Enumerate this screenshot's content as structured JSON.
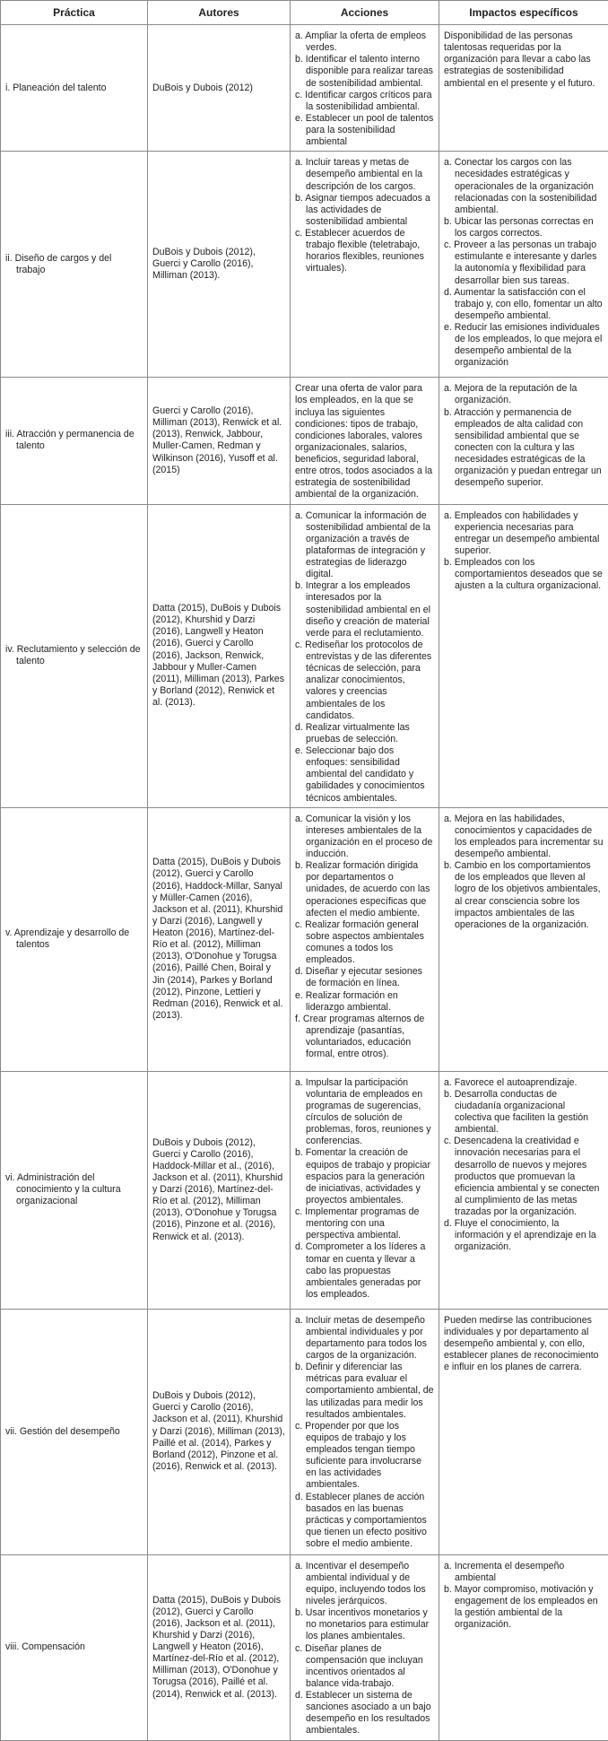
{
  "table": {
    "header": [
      "Práctica",
      "Autores",
      "Acciones",
      "Impactos específicos"
    ],
    "rows": [
      {
        "practice": "i. Planeación del talento",
        "authors": "DuBois y Dubois (2012)",
        "actions": [
          "a. Ampliar la oferta de empleos verdes.",
          "b. Identificar el talento interno disponible para realizar tareas de sostenibilidad ambiental.",
          "c. Identificar cargos críticos para la sostenibilidad ambiental.",
          "e. Establecer un pool de talentos para la sostenibilidad ambiental"
        ],
        "impacts": [
          "Disponibilidad de las personas talentosas requeridas por la organización para llevar a cabo las estrategias de sostenibilidad ambiental en el presente y el futuro."
        ]
      },
      {
        "practice": "ii. Diseño de cargos y del trabajo",
        "authors": "DuBois y Dubois (2012), Guerci y Carollo (2016), Milliman (2013).",
        "actions": [
          "a. Incluir tareas y metas de desempeño ambiental en la descripción de los cargos.",
          "b. Asignar tiempos adecuados a las actividades de sostenibilidad ambiental",
          "c. Establecer acuerdos de trabajo flexible (teletrabajo, horarios flexibles, reuniones virtuales)."
        ],
        "impacts": [
          "a. Conectar los cargos con las necesidades estratégicas y operacionales de la organización relacionadas con la sostenibilidad ambiental.",
          "b. Ubicar las personas correctas en los cargos correctos.",
          "c. Proveer a las personas un trabajo estimulante e interesante y darles la autonomía y flexibilidad para desarrollar bien sus tareas.",
          "d. Aumentar la satisfacción con el trabajo y, con ello, fomentar un alto desempeño ambiental.",
          "e. Reducir las emisiones individuales de los empleados, lo que mejora el desempeño ambiental de la organización"
        ]
      },
      {
        "practice": "iii. Atracción y permanencia de talento",
        "authors": "Guerci y Carollo (2016), Milliman (2013), Renwick et al. (2013), Renwick, Jabbour, Muller-Camen, Redman y Wilkinson (2016), Yusoff et al. (2015)",
        "actions": [
          "Crear una oferta de valor para los empleados, en la que se incluya las siguientes condiciones: tipos de trabajo, condiciones laborales, valores organizacionales, salarios, beneficios, seguridad laboral, entre otros, todos asociados a la estrategia de sostenibilidad ambiental de la organización."
        ],
        "impacts": [
          "a. Mejora de la reputación de la organización.",
          "b. Atracción y permanencia de empleados de alta calidad con sensibilidad ambiental que se conecten con la cultura y las necesidades estratégicas de la organización y puedan entregar un desempeño superior."
        ]
      },
      {
        "practice": "iv. Reclutamiento y selección de talento",
        "authors": "Datta (2015), DuBois y Dubois (2012), Khurshid y Darzi (2016), Langwell y Heaton (2016), Guerci y Carollo (2016), Jackson, Renwick, Jabbour y Muller-Camen (2011), Milliman (2013), Parkes y Borland (2012), Renwick et al. (2013).",
        "actions": [
          "a. Comunicar la información de sostenibilidad ambiental de la organización a través de plataformas de integración y estrategias de liderazgo digital.",
          "b. Integrar a los empleados interesados por la sostenibilidad ambiental en el diseño y creación de material verde para el reclutamiento.",
          "c. Rediseñar los protocolos de entrevistas y de las diferentes técnicas de selección, para analizar conocimientos, valores y creencias ambientales de los candidatos.",
          "d. Realizar virtualmente las pruebas de selección.",
          "e. Seleccionar bajo dos enfoques: sensibilidad ambiental del candidato y gabilidades y conocimientos técnicos ambientales."
        ],
        "impacts": [
          "a. Empleados con habilidades y experiencia necesarias para entregar un desempeño ambiental superior.",
          "b. Empleados con los comportamientos deseados que se ajusten a la cultura organizacional."
        ]
      },
      {
        "practice": "v. Aprendizaje y desarrollo de talentos",
        "authors": "Datta (2015), DuBois y Dubois (2012), Guerci y Carollo (2016), Haddock-Millar, Sanyal y Müller-Camen (2016), Jackson et al. (2011), Khurshid y Darzi (2016), Langwell y Heaton (2016), Martínez-del-Río et al. (2012), Milliman (2013), O'Donohue y Torugsa (2016), Paillé Chen, Boiral y Jin (2014), Parkes y Borland (2012), Pinzone, Lettieri y Redman (2016), Renwick et al. (2013).",
        "actions": [
          "a. Comunicar la visión y los intereses ambientales de la organización en el proceso de inducción.",
          "b. Realizar formación dirigida por departamentos o unidades, de acuerdo con las operaciones específicas que afecten el medio ambiente.",
          "c. Realizar formación general sobre aspectos ambientales comunes a todos los empleados.",
          "d. Diseñar y ejecutar sesiones de formación en línea.",
          "e. Realizar formación en liderazgo ambiental.",
          "f. Crear programas alternos de aprendizaje (pasantías, voluntariados, educación formal, entre otros)."
        ],
        "impacts": [
          "a. Mejora en las habilidades, conocimientos y capacidades de los empleados para incrementar su desempeño ambiental.",
          "b. Cambio en los comportamientos de los empleados que lleven al logro de los objetivos ambientales, al crear consciencia sobre los impactos ambientales de las operaciones de la organización."
        ]
      },
      {
        "practice": "vi. Administración del conocimiento y la cultura organizacional",
        "authors": "DuBois y Dubois (2012), Guerci y Carollo (2016), Haddock-Millar et al., (2016), Jackson et al. (2011), Khurshid y Darzi (2016), Martínez-del-Río et al. (2012), Milliman (2013), O'Donohue y Torugsa (2016), Pinzone et al. (2016), Renwick et al. (2013).",
        "actions": [
          "a. Impulsar la participación voluntaria de empleados en programas de sugerencias, círculos de solución de problemas, foros, reuniones y conferencias.",
          "b. Fomentar la creación de equipos de trabajo y propiciar espacios para la generación de iniciativas, actividades y proyectos ambientales.",
          "c. Implementar programas de mentoring con una perspectiva ambiental.",
          "d. Comprometer a los líderes a tomar en cuenta y llevar a cabo las propuestas ambientales generadas por los empleados."
        ],
        "impacts": [
          "a. Favorece el autoaprendizaje.",
          "b. Desarrolla conductas de ciudadanía organizacional colectiva que faciliten la gestión ambiental.",
          "c. Desencadena la creatividad e innovación necesarias para el desarrollo de nuevos y mejores productos que promuevan la eficiencia ambiental y se conecten al cumplimiento de las metas trazadas por la organización.",
          "d. Fluye el conocimiento, la información y el aprendizaje en la organización."
        ]
      },
      {
        "practice": "vii. Gestión del desempeño",
        "authors": "DuBois y Dubois (2012), Guerci y Carollo (2016), Jackson et al. (2011), Khurshid y Darzi (2016), Milliman (2013), Paillé et al. (2014), Parkes y Borland (2012), Pinzone et al. (2016), Renwick et al. (2013).",
        "actions": [
          "a. Incluir metas de desempeño ambiental individuales y por departamento para todos los cargos de la organización.",
          "b. Definir y diferenciar las métricas para evaluar el comportamiento ambiental, de las utilizadas para medir los resultados ambientales.",
          "c. Propender por que los equipos de trabajo y los empleados tengan tiempo suficiente para involucrarse en las actividades ambientales.",
          "d. Establecer planes de acción basados en las buenas prácticas y comportamientos que tienen un efecto positivo sobre el medio ambiente."
        ],
        "impacts": [
          "Pueden medirse las contribuciones individuales y por departamento al desempeño ambiental y, con ello, establecer planes de reconocimiento e influir en los planes de carrera."
        ]
      },
      {
        "practice": "viii. Compensación",
        "authors": "Datta (2015), DuBois y Dubois (2012), Guerci y Carollo (2016), Jackson et al. (2011), Khurshid y Darzi (2016), Langwell y Heaton (2016), Martínez-del-Río et al. (2012), Milliman (2013), O'Donohue y Torugsa (2016), Paillé et al. (2014), Renwick et al. (2013).",
        "actions": [
          "a. Incentivar el desempeño ambiental individual y de equipo, incluyendo todos los niveles jerárquicos.",
          "b. Usar incentivos monetarios y no monetarios para estimular los planes ambientales.",
          "c. Diseñar planes de compensación que incluyan incentivos orientados al balance vida-trabajo.",
          "d. Establecer un sistema de sanciones asociado a un bajo desempeño en los resultados ambientales."
        ],
        "impacts": [
          "a. Incrementa el desempeño ambiental",
          "b. Mayor compromiso, motivación y engagement de los empleados en la gestión ambiental de la organización."
        ]
      }
    ]
  }
}
